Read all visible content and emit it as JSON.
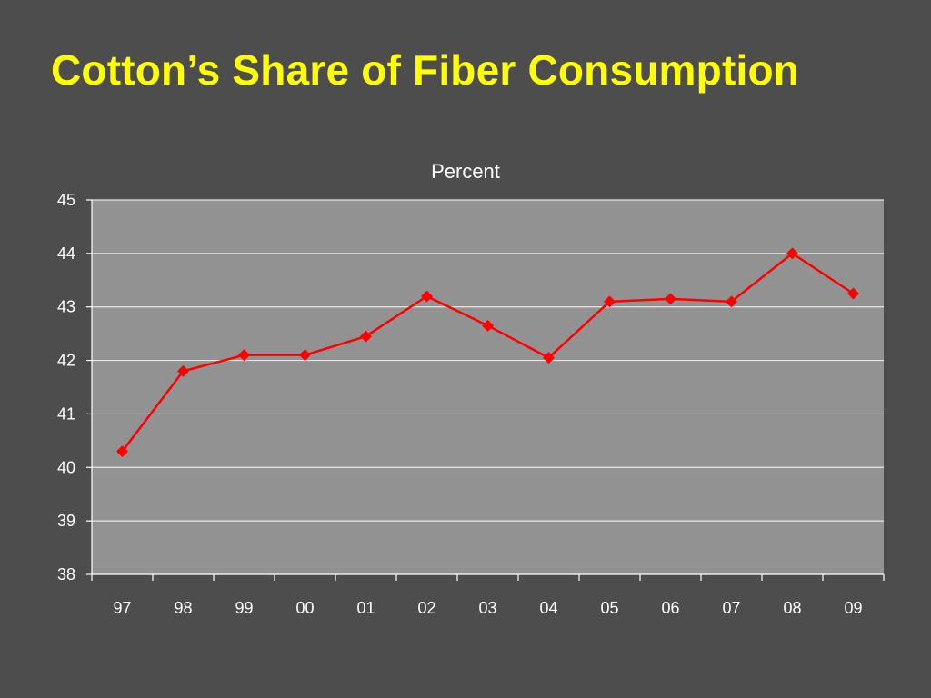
{
  "slide": {
    "title": "Cotton’s Share of Fiber Consumption"
  },
  "colors": {
    "background": "#4d4d4d",
    "title": "#ffff00",
    "plot_area": "#929292",
    "gridline": "#e6e6e6",
    "axis": "#ffffff",
    "series": "#ff0000"
  },
  "chart_data": {
    "type": "line",
    "title": "Percent",
    "xlabel": "",
    "ylabel": "",
    "categories": [
      "97",
      "98",
      "99",
      "00",
      "01",
      "02",
      "03",
      "04",
      "05",
      "06",
      "07",
      "08",
      "09"
    ],
    "series": [
      {
        "values": [
          40.3,
          41.8,
          42.1,
          42.1,
          42.45,
          43.2,
          42.65,
          42.05,
          43.1,
          43.15,
          43.1,
          44.0,
          43.25
        ],
        "marker": "diamond"
      }
    ],
    "ylim": [
      38,
      45
    ],
    "yticks": [
      38,
      39,
      40,
      41,
      42,
      43,
      44,
      45
    ],
    "grid": true,
    "legend": "none"
  }
}
